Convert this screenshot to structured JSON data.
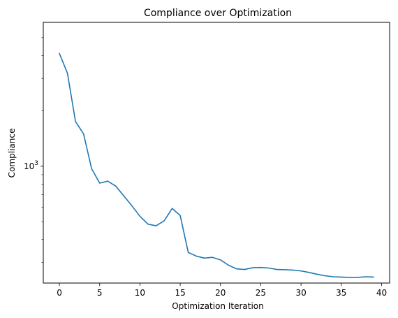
{
  "chart_data": {
    "type": "line",
    "title": "Compliance over Optimization",
    "xlabel": "Optimization Iteration",
    "ylabel": "Compliance",
    "yscale": "log",
    "xlim": [
      -2,
      41
    ],
    "ylim": [
      232,
      6050
    ],
    "x_ticks": [
      0,
      5,
      10,
      15,
      20,
      25,
      30,
      35,
      40
    ],
    "y_major_ticks": [
      {
        "value": 1000,
        "base": "10",
        "exponent": "3"
      }
    ],
    "y_minor_ticks": [
      300,
      400,
      500,
      600,
      700,
      800,
      900,
      2000,
      3000,
      4000,
      5000
    ],
    "grid": false,
    "series": [
      {
        "color": "#1f77b4",
        "x": [
          0,
          1,
          2,
          3,
          4,
          5,
          6,
          7,
          8,
          9,
          10,
          11,
          12,
          13,
          14,
          15,
          16,
          17,
          18,
          19,
          20,
          21,
          22,
          23,
          24,
          25,
          26,
          27,
          28,
          29,
          30,
          31,
          32,
          33,
          34,
          35,
          36,
          37,
          38,
          39
        ],
        "values": [
          4100,
          3200,
          1750,
          1500,
          970,
          810,
          830,
          780,
          690,
          610,
          535,
          485,
          475,
          505,
          590,
          540,
          340,
          325,
          317,
          320,
          310,
          290,
          277,
          275,
          281,
          282,
          280,
          275,
          274,
          273,
          270,
          265,
          259,
          254,
          251,
          250,
          249,
          249,
          251,
          250
        ]
      }
    ]
  }
}
